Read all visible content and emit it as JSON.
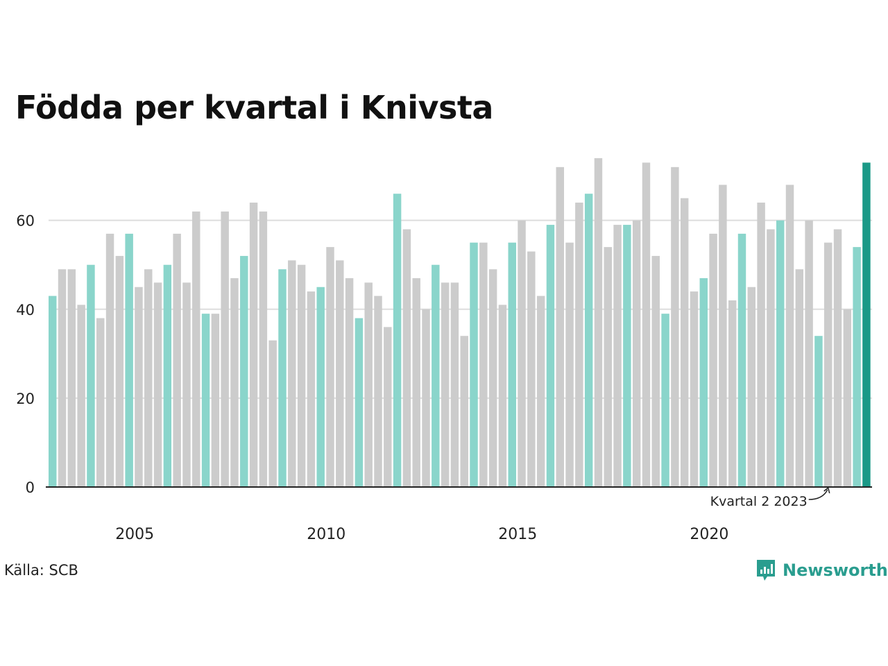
{
  "chart_data": {
    "type": "bar",
    "title": "Födda per kvartal i Knivsta",
    "x_start_year": 2003,
    "x_start_quarter": 2,
    "xticks": [
      "2005",
      "2010",
      "2015",
      "2020"
    ],
    "yticks": [
      0,
      20,
      40,
      60
    ],
    "ylim": [
      0,
      74
    ],
    "highlight_quarter": 2,
    "values": [
      43,
      49,
      49,
      41,
      50,
      38,
      57,
      52,
      57,
      45,
      49,
      46,
      50,
      57,
      46,
      62,
      39,
      39,
      62,
      47,
      52,
      64,
      62,
      33,
      49,
      51,
      50,
      44,
      45,
      54,
      51,
      47,
      38,
      46,
      43,
      36,
      66,
      58,
      47,
      40,
      50,
      46,
      46,
      34,
      55,
      55,
      49,
      41,
      55,
      60,
      53,
      43,
      59,
      72,
      55,
      64,
      66,
      74,
      54,
      59,
      59,
      60,
      73,
      52,
      39,
      72,
      65,
      44,
      47,
      57,
      68,
      42,
      57,
      45,
      64,
      58,
      60,
      68,
      49,
      60,
      34,
      55,
      58,
      40,
      54,
      73
    ],
    "annotation": "Kvartal 2 2023",
    "colors": {
      "other": "#cccccc",
      "highlight": "#8ad5cb",
      "latest": "#1a9987",
      "grid": "#dddddd",
      "axis": "#222222"
    }
  },
  "footer": {
    "source": "Källa: SCB",
    "brand": "Newsworthy"
  }
}
